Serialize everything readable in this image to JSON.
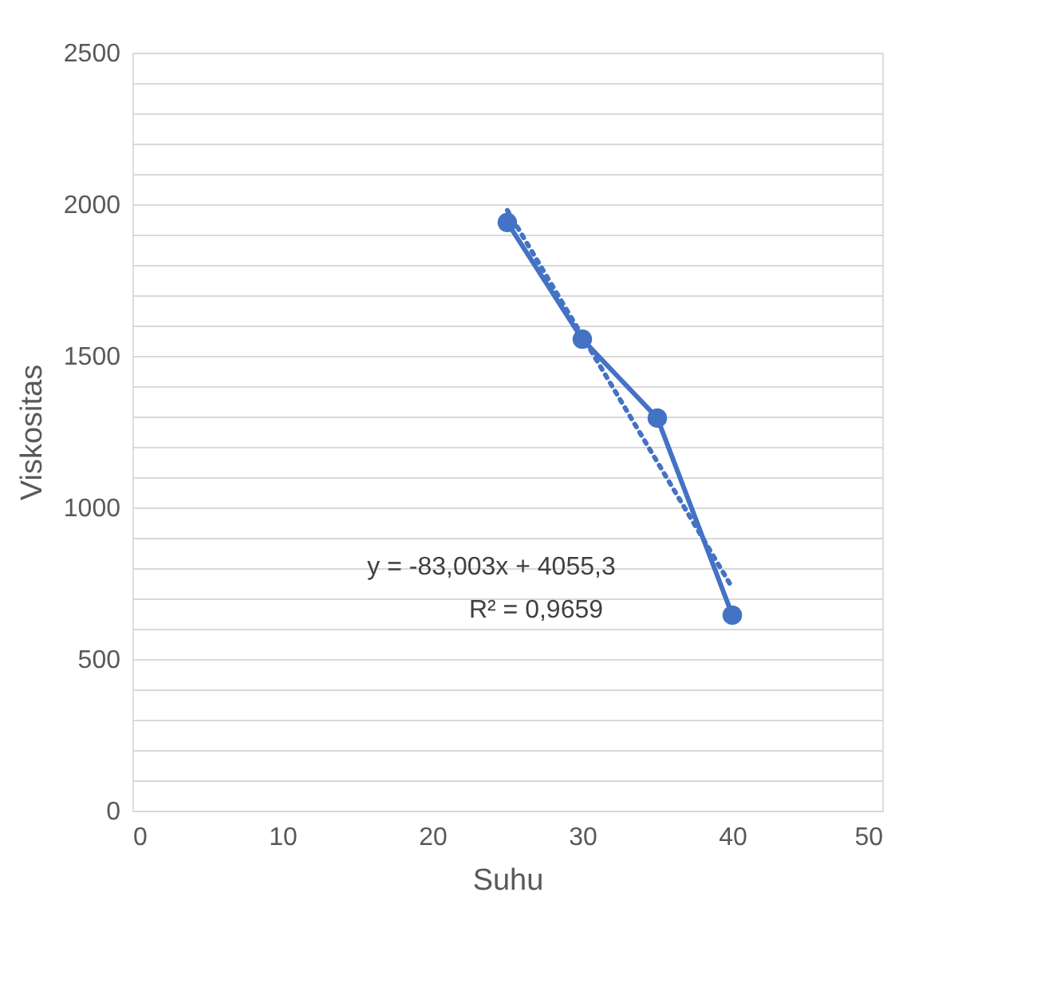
{
  "chart_data": {
    "type": "scatter",
    "xlabel": "Suhu",
    "ylabel": "Viskositas",
    "xlim": [
      0,
      50
    ],
    "xticks": [
      0,
      10,
      20,
      30,
      40,
      50
    ],
    "ylim": [
      0,
      2500
    ],
    "yticks": [
      0,
      {
        "value": 100,
        "label": null
      },
      {
        "value": 200,
        "label": null
      },
      {
        "value": 300,
        "label": null
      },
      {
        "value": 400,
        "label": null
      },
      500,
      {
        "value": 600,
        "label": null
      },
      {
        "value": 700,
        "label": null
      },
      {
        "value": 800,
        "label": null
      },
      {
        "value": 900,
        "label": null
      },
      1000,
      {
        "value": 1100,
        "label": null
      },
      {
        "value": 1200,
        "label": null
      },
      {
        "value": 1300,
        "label": null
      },
      {
        "value": 1400,
        "label": null
      },
      1500,
      {
        "value": 1600,
        "label": null
      },
      {
        "value": 1700,
        "label": null
      },
      {
        "value": 1800,
        "label": null
      },
      {
        "value": 1900,
        "label": null
      },
      2000,
      {
        "value": 2100,
        "label": null
      },
      {
        "value": 2200,
        "label": null
      },
      {
        "value": 2300,
        "label": null
      },
      {
        "value": 2400,
        "label": null
      },
      2500
    ],
    "grid": "y",
    "series": [
      {
        "type": "line",
        "color": "#4472c4",
        "x": [
          25,
          30,
          35,
          40
        ],
        "values": [
          1940,
          1555,
          1295,
          645
        ],
        "marker": "circle",
        "line_style": "solid"
      },
      {
        "type": "line",
        "color": "#4472c4",
        "x": [
          25,
          40
        ],
        "values": [
          1980,
          735
        ],
        "marker": "none",
        "line_style": "dotted"
      }
    ],
    "annotations": [
      "y = -83,003x + 4055,3",
      "R² = 0,9659"
    ]
  }
}
